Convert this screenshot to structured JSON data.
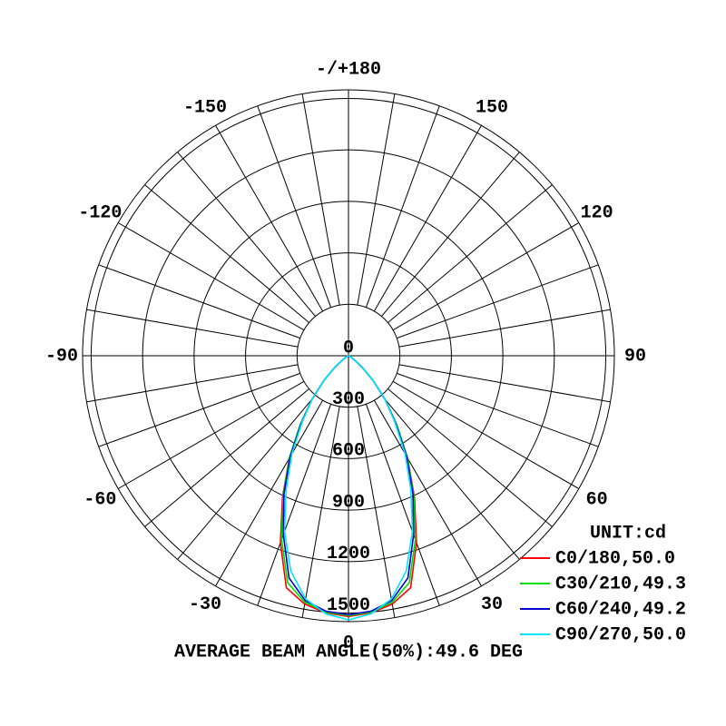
{
  "chart_data": {
    "type": "polar",
    "unit_label": "UNIT:cd",
    "footer": "AVERAGE BEAM ANGLE(50%):49.6 DEG",
    "rlim": [
      0,
      1550
    ],
    "rticks": [
      0,
      300,
      600,
      900,
      1200,
      1500
    ],
    "angle_ticks": [
      {
        "value": 180,
        "label": "-/+180"
      },
      150,
      120,
      90,
      60,
      30,
      0,
      -30,
      -60,
      -90,
      -120,
      -150
    ],
    "angle_grid_step": 10,
    "x": [
      -90,
      -85,
      -80,
      -75,
      -70,
      -65,
      -60,
      -55,
      -50,
      -45,
      -40,
      -35,
      -30,
      -25,
      -20,
      -15,
      -10,
      -5,
      0,
      5,
      10,
      15,
      20,
      25,
      30,
      35,
      40,
      45,
      50,
      55,
      60,
      65,
      70,
      75,
      80,
      85,
      90
    ],
    "series": [
      {
        "name": "C0/180,50.0",
        "color": "#ff0000",
        "values": [
          0,
          0,
          0,
          0,
          0,
          5,
          15,
          40,
          100,
          200,
          330,
          490,
          690,
          910,
          1160,
          1400,
          1470,
          1505,
          1520,
          1505,
          1470,
          1400,
          1160,
          910,
          690,
          490,
          330,
          200,
          100,
          40,
          15,
          5,
          0,
          0,
          0,
          0,
          0
        ]
      },
      {
        "name": "C30/210,49.3",
        "color": "#00dd00",
        "values": [
          0,
          0,
          0,
          0,
          0,
          5,
          15,
          40,
          100,
          200,
          330,
          490,
          690,
          900,
          1140,
          1370,
          1460,
          1500,
          1515,
          1500,
          1460,
          1370,
          1140,
          900,
          690,
          490,
          330,
          200,
          100,
          40,
          15,
          5,
          0,
          0,
          0,
          0,
          0
        ]
      },
      {
        "name": "C60/240,49.2",
        "color": "#0000cc",
        "values": [
          0,
          0,
          0,
          0,
          0,
          5,
          15,
          40,
          100,
          200,
          330,
          480,
          680,
          890,
          1110,
          1340,
          1450,
          1495,
          1510,
          1495,
          1450,
          1340,
          1110,
          890,
          680,
          480,
          330,
          200,
          100,
          40,
          15,
          5,
          0,
          0,
          0,
          0,
          0
        ]
      },
      {
        "name": "C90/270,50.0",
        "color": "#00e5ff",
        "values": [
          0,
          0,
          0,
          0,
          0,
          5,
          15,
          40,
          100,
          200,
          330,
          470,
          660,
          860,
          1090,
          1300,
          1440,
          1510,
          1540,
          1510,
          1440,
          1300,
          1090,
          860,
          660,
          470,
          330,
          200,
          100,
          40,
          15,
          5,
          0,
          0,
          0,
          0,
          0
        ]
      }
    ]
  }
}
